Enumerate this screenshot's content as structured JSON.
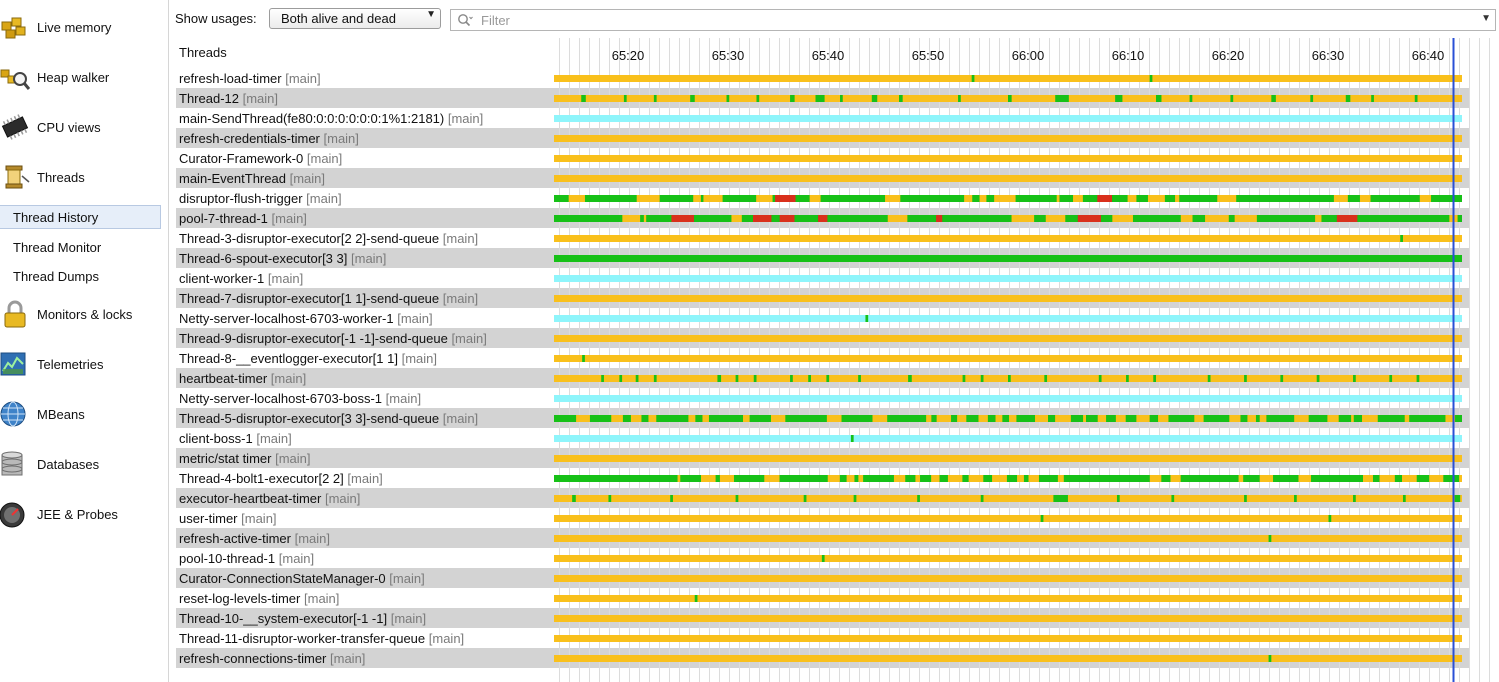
{
  "sidebar": {
    "items": [
      {
        "label": "Live memory",
        "icon": "live-memory-icon"
      },
      {
        "label": "Heap walker",
        "icon": "heap-walker-icon"
      },
      {
        "label": "CPU views",
        "icon": "cpu-icon"
      },
      {
        "label": "Threads",
        "icon": "threads-icon"
      },
      {
        "label": "Monitors & locks",
        "icon": "lock-icon"
      },
      {
        "label": "Telemetries",
        "icon": "telemetry-icon"
      },
      {
        "label": "MBeans",
        "icon": "mbeans-icon"
      },
      {
        "label": "Databases",
        "icon": "database-icon"
      },
      {
        "label": "JEE & Probes",
        "icon": "probe-icon"
      }
    ],
    "subitems": [
      {
        "label": "Thread History",
        "selected": true
      },
      {
        "label": "Thread Monitor",
        "selected": false
      },
      {
        "label": "Thread Dumps",
        "selected": false
      }
    ]
  },
  "toolbar": {
    "show_usages_label": "Show usages:",
    "usage_value": "Both alive and dead",
    "filter_placeholder": "Filter"
  },
  "timeline": {
    "header": "Threads",
    "time_labels": [
      "65:20",
      "65:30",
      "65:40",
      "65:50",
      "66:00",
      "66:10",
      "66:20",
      "66:30",
      "66:40"
    ],
    "cursor_time": "66:42",
    "colors": {
      "waiting": "#f9c01b",
      "runnable": "#17c117",
      "net_io": "#8ef5fb",
      "blocked": "#d9301b",
      "cursor": "#2a4fd6"
    }
  },
  "threads": [
    {
      "name": "refresh-load-timer",
      "group": "[main]",
      "base": "waiting",
      "marks": [
        [
          0.46,
          0.003
        ],
        [
          0.656,
          0.003
        ]
      ]
    },
    {
      "name": "Thread-12",
      "group": "[main]",
      "base": "waiting",
      "marks": [
        [
          0.03,
          0.005
        ],
        [
          0.077,
          0.003
        ],
        [
          0.11,
          0.003
        ],
        [
          0.15,
          0.005
        ],
        [
          0.19,
          0.003
        ],
        [
          0.223,
          0.003
        ],
        [
          0.26,
          0.005
        ],
        [
          0.288,
          0.01
        ],
        [
          0.315,
          0.003
        ],
        [
          0.35,
          0.006
        ],
        [
          0.38,
          0.004
        ],
        [
          0.445,
          0.003
        ],
        [
          0.5,
          0.004
        ],
        [
          0.552,
          0.015
        ],
        [
          0.618,
          0.008
        ],
        [
          0.663,
          0.006
        ],
        [
          0.7,
          0.003
        ],
        [
          0.745,
          0.003
        ],
        [
          0.79,
          0.005
        ],
        [
          0.833,
          0.003
        ],
        [
          0.872,
          0.005
        ],
        [
          0.9,
          0.003
        ],
        [
          0.948,
          0.003
        ]
      ]
    },
    {
      "name": "main-SendThread(fe80:0:0:0:0:0:0:1%1:2181)",
      "group": "[main]",
      "base": "net_io",
      "marks": []
    },
    {
      "name": "refresh-credentials-timer",
      "group": "[main]",
      "base": "waiting",
      "marks": []
    },
    {
      "name": "Curator-Framework-0",
      "group": "[main]",
      "base": "waiting",
      "marks": []
    },
    {
      "name": "main-EventThread",
      "group": "[main]",
      "base": "waiting",
      "marks": []
    },
    {
      "name": "disruptor-flush-trigger",
      "group": "[main]",
      "base": "runnable",
      "pattern": "mixed",
      "seed": 11
    },
    {
      "name": "pool-7-thread-1",
      "group": "[main]",
      "base": "runnable",
      "pattern": "mixed",
      "seed": 29
    },
    {
      "name": "Thread-3-disruptor-executor[2 2]-send-queue",
      "group": "[main]",
      "base": "waiting",
      "marks": [
        [
          0.932,
          0.003
        ]
      ]
    },
    {
      "name": "Thread-6-spout-executor[3 3]",
      "group": "[main]",
      "base": "runnable",
      "marks": []
    },
    {
      "name": "client-worker-1",
      "group": "[main]",
      "base": "net_io",
      "marks": []
    },
    {
      "name": "Thread-7-disruptor-executor[1 1]-send-queue",
      "group": "[main]",
      "base": "waiting",
      "marks": []
    },
    {
      "name": "Netty-server-localhost-6703-worker-1",
      "group": "[main]",
      "base": "net_io",
      "marks": [
        [
          0.343,
          0.003
        ]
      ]
    },
    {
      "name": "Thread-9-disruptor-executor[-1 -1]-send-queue",
      "group": "[main]",
      "base": "waiting",
      "marks": []
    },
    {
      "name": "Thread-8-__eventlogger-executor[1 1]",
      "group": "[main]",
      "base": "waiting",
      "marks": [
        [
          0.031,
          0.003
        ]
      ]
    },
    {
      "name": "heartbeat-timer",
      "group": "[main]",
      "base": "waiting",
      "marks": [
        [
          0.052,
          0.003
        ],
        [
          0.072,
          0.003
        ],
        [
          0.09,
          0.003
        ],
        [
          0.11,
          0.003
        ],
        [
          0.18,
          0.004
        ],
        [
          0.2,
          0.003
        ],
        [
          0.22,
          0.003
        ],
        [
          0.26,
          0.003
        ],
        [
          0.28,
          0.003
        ],
        [
          0.3,
          0.003
        ],
        [
          0.335,
          0.003
        ],
        [
          0.39,
          0.004
        ],
        [
          0.45,
          0.003
        ],
        [
          0.47,
          0.003
        ],
        [
          0.5,
          0.003
        ],
        [
          0.54,
          0.003
        ],
        [
          0.6,
          0.003
        ],
        [
          0.63,
          0.003
        ],
        [
          0.66,
          0.003
        ],
        [
          0.72,
          0.003
        ],
        [
          0.76,
          0.003
        ],
        [
          0.8,
          0.003
        ],
        [
          0.84,
          0.003
        ],
        [
          0.88,
          0.003
        ],
        [
          0.92,
          0.003
        ],
        [
          0.95,
          0.003
        ]
      ]
    },
    {
      "name": "Netty-server-localhost-6703-boss-1",
      "group": "[main]",
      "base": "net_io",
      "marks": []
    },
    {
      "name": "Thread-5-disruptor-executor[3 3]-send-queue",
      "group": "[main]",
      "base": "runnable",
      "pattern": "dense",
      "seed": 47
    },
    {
      "name": "client-boss-1",
      "group": "[main]",
      "base": "net_io",
      "marks": [
        [
          0.327,
          0.003
        ]
      ]
    },
    {
      "name": "metric/stat timer",
      "group": "[main]",
      "base": "waiting",
      "marks": []
    },
    {
      "name": "Thread-4-bolt1-executor[2 2]",
      "group": "[main]",
      "base": "runnable",
      "pattern": "dense",
      "seed": 73
    },
    {
      "name": "executor-heartbeat-timer",
      "group": "[main]",
      "base": "waiting",
      "marks": [
        [
          0.02,
          0.004
        ],
        [
          0.06,
          0.003
        ],
        [
          0.128,
          0.003
        ],
        [
          0.2,
          0.003
        ],
        [
          0.275,
          0.003
        ],
        [
          0.33,
          0.003
        ],
        [
          0.4,
          0.003
        ],
        [
          0.47,
          0.003
        ],
        [
          0.55,
          0.016
        ],
        [
          0.62,
          0.003
        ],
        [
          0.68,
          0.003
        ],
        [
          0.76,
          0.003
        ],
        [
          0.815,
          0.003
        ],
        [
          0.88,
          0.003
        ],
        [
          0.935,
          0.003
        ],
        [
          0.992,
          0.006
        ]
      ]
    },
    {
      "name": "user-timer",
      "group": "[main]",
      "base": "waiting",
      "marks": [
        [
          0.536,
          0.003
        ],
        [
          0.853,
          0.003
        ]
      ]
    },
    {
      "name": "refresh-active-timer",
      "group": "[main]",
      "base": "waiting",
      "marks": [
        [
          0.787,
          0.003
        ]
      ]
    },
    {
      "name": "pool-10-thread-1",
      "group": "[main]",
      "base": "waiting",
      "marks": [
        [
          0.295,
          0.003
        ]
      ]
    },
    {
      "name": "Curator-ConnectionStateManager-0",
      "group": "[main]",
      "base": "waiting",
      "marks": []
    },
    {
      "name": "reset-log-levels-timer",
      "group": "[main]",
      "base": "waiting",
      "marks": [
        [
          0.155,
          0.003
        ]
      ]
    },
    {
      "name": "Thread-10-__system-executor[-1 -1]",
      "group": "[main]",
      "base": "waiting",
      "marks": []
    },
    {
      "name": "Thread-11-disruptor-worker-transfer-queue",
      "group": "[main]",
      "base": "waiting",
      "marks": []
    },
    {
      "name": "refresh-connections-timer",
      "group": "[main]",
      "base": "waiting",
      "marks": [
        [
          0.787,
          0.003
        ]
      ]
    }
  ]
}
